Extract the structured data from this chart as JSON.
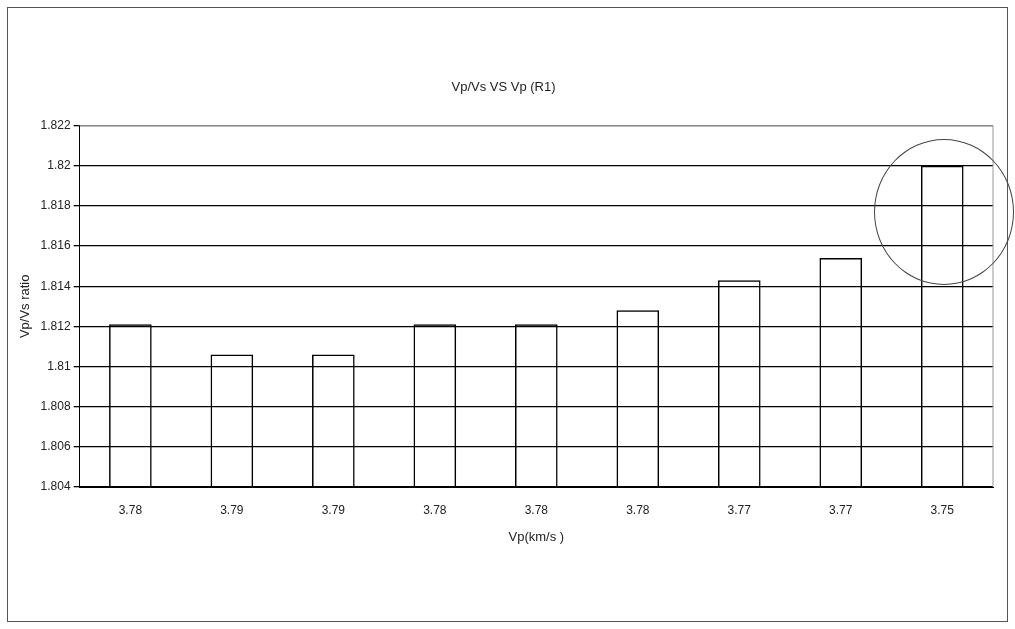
{
  "chart_data": {
    "type": "bar",
    "title": "Vp/Vs VS Vp (R1)",
    "xlabel": "Vp(km/s )",
    "ylabel": "Vp/Vs ratio",
    "categories": [
      "3.78",
      "3.79",
      "3.79",
      "3.78",
      "3.78",
      "3.78",
      "3.77",
      "3.77",
      "3.75"
    ],
    "values": [
      1.8121,
      1.8106,
      1.8106,
      1.8121,
      1.8121,
      1.8128,
      1.8143,
      1.8154,
      1.82
    ],
    "color": "#000000",
    "ylim": [
      1.804,
      1.822
    ],
    "yticks": [
      1.804,
      1.806,
      1.808,
      1.81,
      1.812,
      1.814,
      1.816,
      1.818,
      1.82,
      1.822
    ],
    "grid": "y"
  }
}
